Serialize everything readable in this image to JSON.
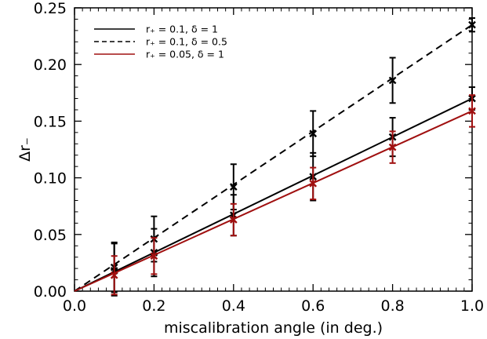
{
  "chart_data": {
    "type": "line",
    "xlabel": "miscalibration angle (in deg.)",
    "ylabel": "Δr₋",
    "xlim": [
      0.0,
      1.0
    ],
    "ylim": [
      0.0,
      0.25
    ],
    "x_ticks": [
      "0.0",
      "0.2",
      "0.4",
      "0.6",
      "0.8",
      "1.0"
    ],
    "y_ticks": [
      "0.00",
      "0.05",
      "0.10",
      "0.15",
      "0.20",
      "0.25"
    ],
    "grid": false,
    "legend_position": "top-left",
    "series": [
      {
        "name": "r₊ = 0.1, δ = 1",
        "color": "#000000",
        "line_style": "solid",
        "line": {
          "x": [
            0.0,
            1.0
          ],
          "y": [
            0.0,
            0.17
          ]
        },
        "points": [
          {
            "x": 0.1,
            "y": 0.018,
            "err": 0.024
          },
          {
            "x": 0.2,
            "y": 0.034,
            "err": 0.021
          },
          {
            "x": 0.4,
            "y": 0.067,
            "err": 0.018
          },
          {
            "x": 0.6,
            "y": 0.101,
            "err": 0.021
          },
          {
            "x": 0.8,
            "y": 0.136,
            "err": 0.017
          },
          {
            "x": 1.0,
            "y": 0.17,
            "err": 0.01
          }
        ]
      },
      {
        "name": "r₊ = 0.1, δ = 0.5",
        "color": "#000000",
        "line_style": "dashed",
        "line": {
          "x": [
            0.0,
            1.0
          ],
          "y": [
            0.0,
            0.235
          ]
        },
        "points": [
          {
            "x": 0.1,
            "y": 0.021,
            "err": 0.022
          },
          {
            "x": 0.2,
            "y": 0.046,
            "err": 0.02
          },
          {
            "x": 0.4,
            "y": 0.092,
            "err": 0.02
          },
          {
            "x": 0.6,
            "y": 0.139,
            "err": 0.02
          },
          {
            "x": 0.8,
            "y": 0.186,
            "err": 0.02
          },
          {
            "x": 1.0,
            "y": 0.235,
            "err": 0.006
          }
        ]
      },
      {
        "name": "r₊ = 0.05, δ = 1",
        "color": "#a01010",
        "line_style": "solid",
        "line": {
          "x": [
            0.0,
            1.0
          ],
          "y": [
            0.0,
            0.159
          ]
        },
        "points": [
          {
            "x": 0.1,
            "y": 0.014,
            "err": 0.017
          },
          {
            "x": 0.2,
            "y": 0.031,
            "err": 0.016
          },
          {
            "x": 0.4,
            "y": 0.063,
            "err": 0.014
          },
          {
            "x": 0.6,
            "y": 0.095,
            "err": 0.014
          },
          {
            "x": 0.8,
            "y": 0.127,
            "err": 0.014
          },
          {
            "x": 1.0,
            "y": 0.159,
            "err": 0.014
          }
        ]
      }
    ]
  }
}
